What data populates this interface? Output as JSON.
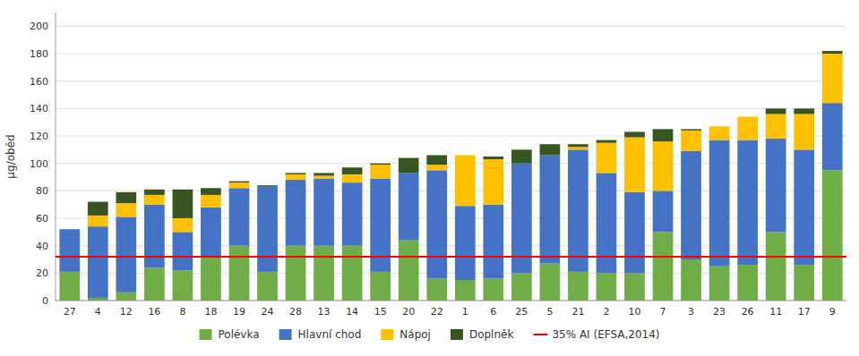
{
  "chart_data": {
    "type": "bar",
    "stacked": true,
    "categories": [
      "27",
      "4",
      "12",
      "16",
      "8",
      "18",
      "19",
      "24",
      "28",
      "13",
      "14",
      "15",
      "20",
      "22",
      "1",
      "6",
      "25",
      "5",
      "21",
      "2",
      "10",
      "7",
      "3",
      "23",
      "26",
      "11",
      "17",
      "9"
    ],
    "series": [
      {
        "name": "Polévka",
        "color": "#70ad47",
        "values": [
          21,
          2,
          6,
          24,
          22,
          32,
          40,
          21,
          40,
          40,
          40,
          21,
          44,
          16,
          15,
          16,
          20,
          27,
          21,
          20,
          20,
          50,
          30,
          25,
          26,
          50,
          26,
          95
        ]
      },
      {
        "name": "Hlavní chod",
        "color": "#4472c4",
        "values": [
          31,
          52,
          55,
          46,
          28,
          36,
          42,
          62,
          48,
          49,
          46,
          68,
          49,
          79,
          54,
          54,
          80,
          79,
          89,
          73,
          59,
          30,
          79,
          92,
          91,
          68,
          84,
          49
        ]
      },
      {
        "name": "Nápoj",
        "color": "#ffc000",
        "values": [
          0,
          8,
          10,
          7,
          10,
          9,
          4,
          0,
          4,
          2,
          6,
          10,
          0,
          4,
          37,
          33,
          0,
          0,
          2,
          22,
          40,
          36,
          15,
          10,
          17,
          18,
          26,
          36
        ]
      },
      {
        "name": "Doplněk",
        "color": "#375623",
        "values": [
          0,
          10,
          8,
          4,
          21,
          5,
          1,
          1,
          1,
          2,
          5,
          1,
          11,
          7,
          0,
          2,
          10,
          8,
          2,
          2,
          4,
          9,
          1,
          0,
          0,
          4,
          4,
          2
        ]
      }
    ],
    "reference_line": {
      "name": "35% AI (EFSA,2014)",
      "value": 32,
      "color": "#ff0000"
    },
    "ylabel": "µg/oběd",
    "ylim": [
      0,
      210
    ],
    "yticks": [
      0,
      20,
      40,
      60,
      80,
      100,
      120,
      140,
      160,
      180,
      200
    ],
    "grid": true,
    "legend": "bottom"
  }
}
